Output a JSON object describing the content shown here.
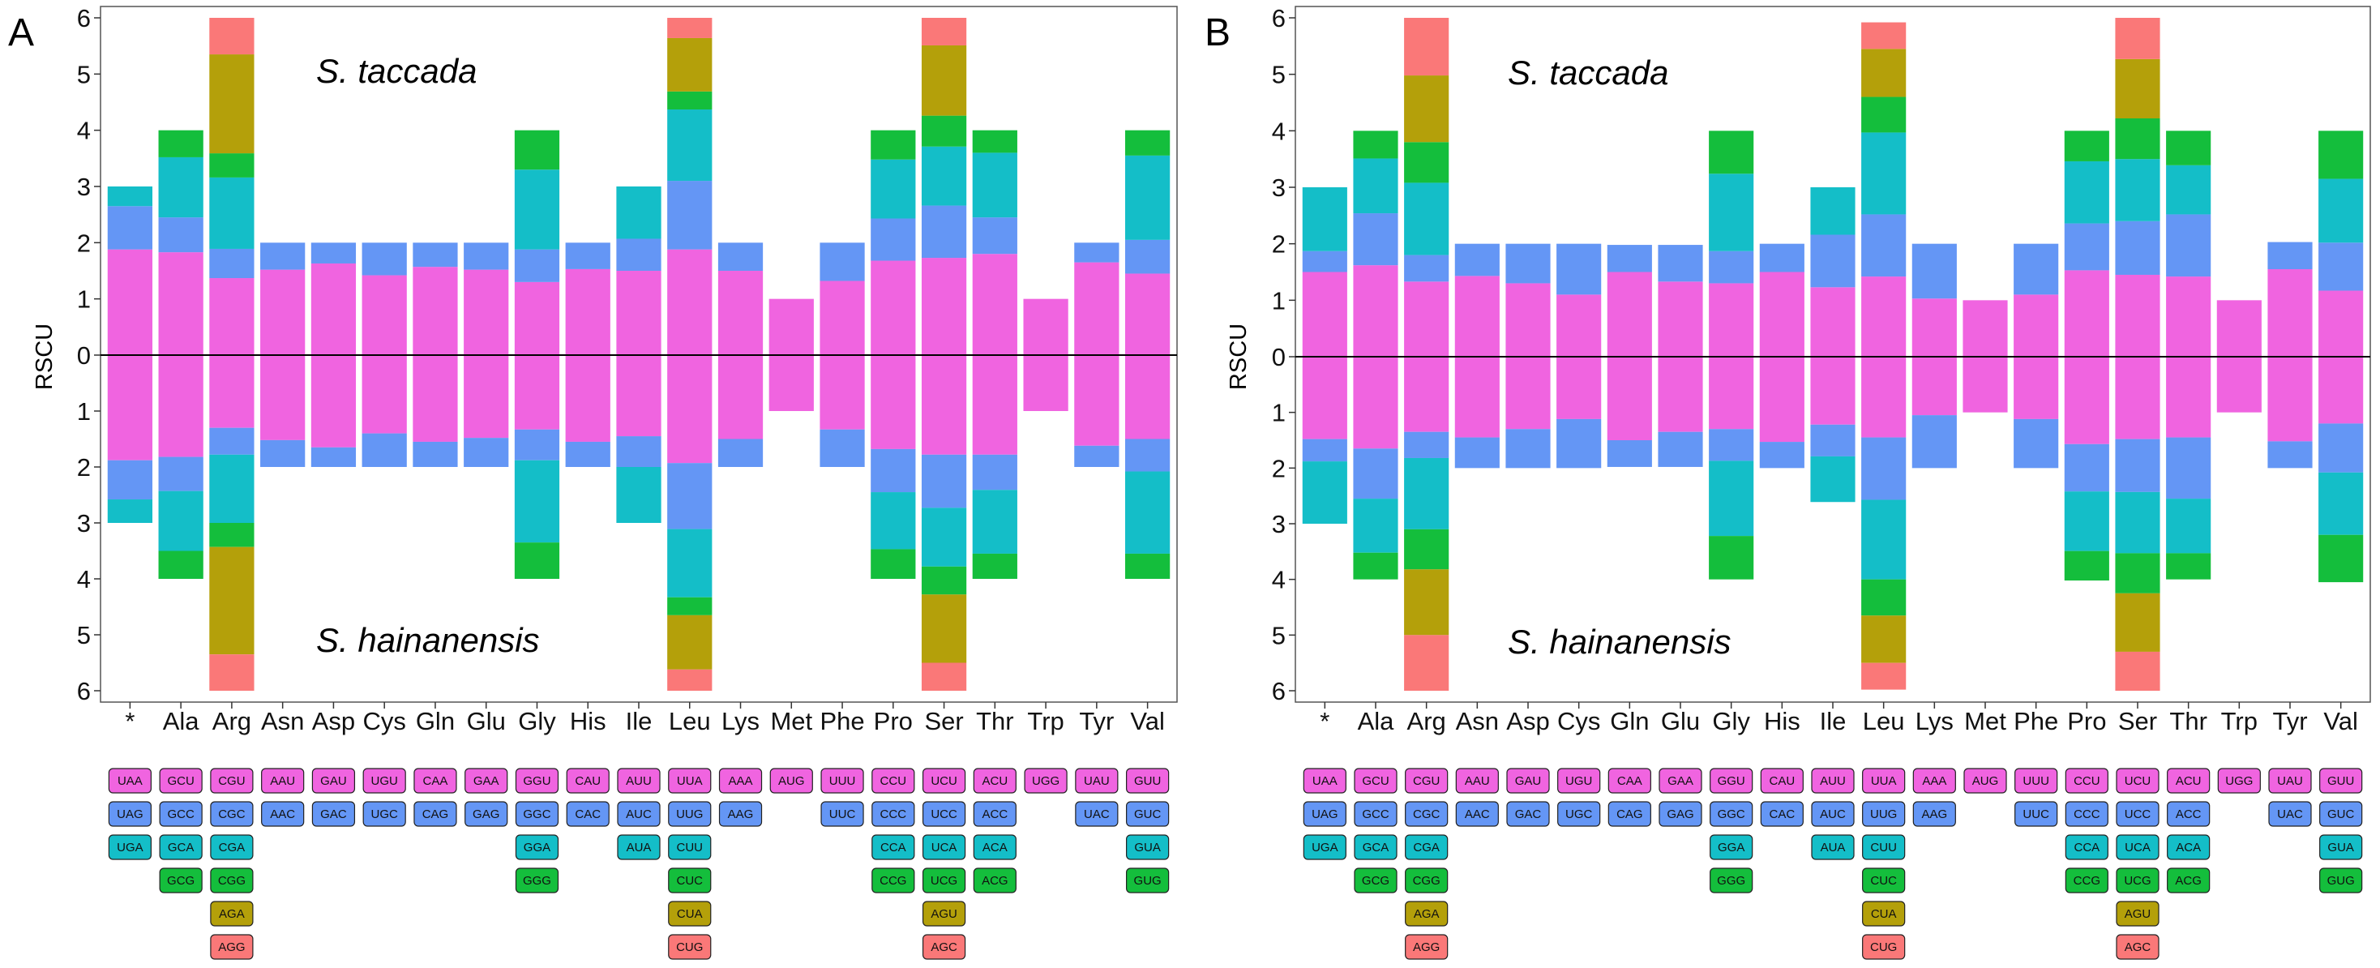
{
  "colors": {
    "pink": "#F064E0",
    "blue": "#6496F5",
    "cyan": "#14BEC8",
    "green": "#14BE3C",
    "olive": "#B4A00A",
    "salmon": "#FA7878"
  },
  "color_order": [
    "pink",
    "blue",
    "cyan",
    "green",
    "olive",
    "salmon"
  ],
  "chart_data": [
    {
      "type": "bar",
      "panel_label": "A",
      "ylabel": "RSCU",
      "yticks": [
        "6",
        "5",
        "4",
        "3",
        "2",
        "1",
        "0",
        "1",
        "2",
        "3",
        "4",
        "5",
        "6"
      ],
      "ylim_top": 6,
      "ylim_bottom": 6,
      "top_species": "S. taccada",
      "bottom_species": "S. hainanensis",
      "categories": [
        "*",
        "Ala",
        "Arg",
        "Asn",
        "Asp",
        "Cys",
        "Gln",
        "Glu",
        "Gly",
        "His",
        "Ile",
        "Leu",
        "Lys",
        "Met",
        "Phe",
        "Pro",
        "Ser",
        "Thr",
        "Trp",
        "Tyr",
        "Val"
      ],
      "top_stacks": [
        [
          1.88,
          0.77,
          0.35
        ],
        [
          1.83,
          0.62,
          1.07,
          0.48
        ],
        [
          1.37,
          0.52,
          1.27,
          0.43,
          1.76,
          0.65
        ],
        [
          1.52,
          0.48
        ],
        [
          1.63,
          0.37
        ],
        [
          1.42,
          0.58
        ],
        [
          1.57,
          0.43
        ],
        [
          1.52,
          0.48
        ],
        [
          1.3,
          0.58,
          1.42,
          0.7
        ],
        [
          1.53,
          0.47
        ],
        [
          1.5,
          0.57,
          0.93
        ],
        [
          1.88,
          1.22,
          1.27,
          0.32,
          0.95,
          0.36
        ],
        [
          1.5,
          0.5
        ],
        [
          1.0
        ],
        [
          1.32,
          0.68
        ],
        [
          1.68,
          0.75,
          1.05,
          0.52
        ],
        [
          1.73,
          0.93,
          1.05,
          0.55,
          1.25,
          0.49
        ],
        [
          1.8,
          0.65,
          1.15,
          0.4
        ],
        [
          1.0
        ],
        [
          1.65,
          0.35
        ],
        [
          1.45,
          0.6,
          1.5,
          0.45
        ]
      ],
      "bottom_stacks": [
        [
          1.88,
          0.7,
          0.42
        ],
        [
          1.82,
          0.61,
          1.07,
          0.5
        ],
        [
          1.3,
          0.48,
          1.22,
          0.43,
          1.92,
          0.65
        ],
        [
          1.52,
          0.48
        ],
        [
          1.65,
          0.35
        ],
        [
          1.4,
          0.6
        ],
        [
          1.55,
          0.45
        ],
        [
          1.48,
          0.52
        ],
        [
          1.33,
          0.55,
          1.47,
          0.65
        ],
        [
          1.55,
          0.45
        ],
        [
          1.45,
          0.55,
          1.0
        ],
        [
          1.93,
          1.18,
          1.22,
          0.32,
          0.97,
          0.38
        ],
        [
          1.5,
          0.5
        ],
        [
          1.0
        ],
        [
          1.33,
          0.67
        ],
        [
          1.68,
          0.77,
          1.02,
          0.53
        ],
        [
          1.78,
          0.95,
          1.05,
          0.5,
          1.22,
          0.5
        ],
        [
          1.78,
          0.63,
          1.14,
          0.45
        ],
        [
          1.0
        ],
        [
          1.62,
          0.38
        ],
        [
          1.5,
          0.58,
          1.47,
          0.45
        ]
      ]
    },
    {
      "type": "bar",
      "panel_label": "B",
      "ylabel": "RSCU",
      "yticks": [
        "6",
        "5",
        "4",
        "3",
        "2",
        "1",
        "0",
        "1",
        "2",
        "3",
        "4",
        "5",
        "6"
      ],
      "ylim_top": 6,
      "ylim_bottom": 6,
      "top_species": "S. taccada",
      "bottom_species": "S. hainanensis",
      "categories": [
        "*",
        "Ala",
        "Arg",
        "Asn",
        "Asp",
        "Cys",
        "Gln",
        "Glu",
        "Gly",
        "His",
        "Ile",
        "Leu",
        "Lys",
        "Met",
        "Phe",
        "Pro",
        "Ser",
        "Thr",
        "Trp",
        "Tyr",
        "Val"
      ],
      "top_stacks": [
        [
          1.5,
          0.37,
          1.13
        ],
        [
          1.62,
          0.92,
          0.97,
          0.49
        ],
        [
          1.33,
          0.47,
          1.28,
          0.72,
          1.18,
          1.02
        ],
        [
          1.43,
          0.57
        ],
        [
          1.3,
          0.7
        ],
        [
          1.1,
          0.9
        ],
        [
          1.5,
          0.48
        ],
        [
          1.33,
          0.65
        ],
        [
          1.3,
          0.57,
          1.37,
          0.76
        ],
        [
          1.5,
          0.5
        ],
        [
          1.23,
          0.93,
          0.84
        ],
        [
          1.42,
          1.1,
          1.45,
          0.63,
          0.85,
          0.47
        ],
        [
          1.03,
          0.97
        ],
        [
          1.0
        ],
        [
          1.1,
          0.9
        ],
        [
          1.53,
          0.83,
          1.1,
          0.54
        ],
        [
          1.45,
          0.95,
          1.1,
          0.72,
          1.05,
          0.73
        ],
        [
          1.42,
          1.1,
          0.87,
          0.61
        ],
        [
          1.0
        ],
        [
          1.55,
          0.48
        ],
        [
          1.17,
          0.85,
          1.13,
          0.85
        ]
      ],
      "bottom_stacks": [
        [
          1.48,
          0.4,
          1.12
        ],
        [
          1.65,
          0.9,
          0.97,
          0.48
        ],
        [
          1.35,
          0.47,
          1.28,
          0.72,
          1.18,
          1.0
        ],
        [
          1.45,
          0.55
        ],
        [
          1.3,
          0.7
        ],
        [
          1.12,
          0.88
        ],
        [
          1.5,
          0.48
        ],
        [
          1.35,
          0.63
        ],
        [
          1.3,
          0.57,
          1.35,
          0.78
        ],
        [
          1.53,
          0.47
        ],
        [
          1.22,
          0.57,
          0.82
        ],
        [
          1.45,
          1.12,
          1.43,
          0.65,
          0.85,
          0.48
        ],
        [
          1.05,
          0.95
        ],
        [
          1.0
        ],
        [
          1.12,
          0.88
        ],
        [
          1.57,
          0.85,
          1.07,
          0.53
        ],
        [
          1.48,
          0.95,
          1.1,
          0.72,
          1.05,
          0.7
        ],
        [
          1.45,
          1.1,
          0.98,
          0.47
        ],
        [
          1.0
        ],
        [
          1.52,
          0.48
        ],
        [
          1.2,
          0.88,
          1.12,
          0.85
        ]
      ]
    }
  ],
  "codon_tables": [
    [
      [
        "UAA",
        "UAG",
        "UGA"
      ],
      [
        "GCU",
        "GCC",
        "GCA",
        "GCG"
      ],
      [
        "CGU",
        "CGC",
        "CGA",
        "CGG",
        "AGA",
        "AGG"
      ],
      [
        "AAU",
        "AAC"
      ],
      [
        "GAU",
        "GAC"
      ],
      [
        "UGU",
        "UGC"
      ],
      [
        "CAA",
        "CAG"
      ],
      [
        "GAA",
        "GAG"
      ],
      [
        "GGU",
        "GGC",
        "GGA",
        "GGG"
      ],
      [
        "CAU",
        "CAC"
      ],
      [
        "AUU",
        "AUC",
        "AUA"
      ],
      [
        "UUA",
        "UUG",
        "CUU",
        "CUC",
        "CUA",
        "CUG"
      ],
      [
        "AAA",
        "AAG"
      ],
      [
        "AUG"
      ],
      [
        "UUU",
        "UUC"
      ],
      [
        "CCU",
        "CCC",
        "CCA",
        "CCG"
      ],
      [
        "UCU",
        "UCC",
        "UCA",
        "UCG",
        "AGU",
        "AGC"
      ],
      [
        "ACU",
        "ACC",
        "ACA",
        "ACG"
      ],
      [
        "UGG"
      ],
      [
        "UAU",
        "UAC"
      ],
      [
        "GUU",
        "GUC",
        "GUA",
        "GUG"
      ]
    ],
    [
      [
        "UAA",
        "UAG",
        "UGA"
      ],
      [
        "GCU",
        "GCC",
        "GCA",
        "GCG"
      ],
      [
        "CGU",
        "CGC",
        "CGA",
        "CGG",
        "AGA",
        "AGG"
      ],
      [
        "AAU",
        "AAC"
      ],
      [
        "GAU",
        "GAC"
      ],
      [
        "UGU",
        "UGC"
      ],
      [
        "CAA",
        "CAG"
      ],
      [
        "GAA",
        "GAG"
      ],
      [
        "GGU",
        "GGC",
        "GGA",
        "GGG"
      ],
      [
        "CAU",
        "CAC"
      ],
      [
        "AUU",
        "AUC",
        "AUA"
      ],
      [
        "UUA",
        "UUG",
        "CUU",
        "CUC",
        "CUA",
        "CUG"
      ],
      [
        "AAA",
        "AAG"
      ],
      [
        "AUG"
      ],
      [
        "UUU",
        "UUC"
      ],
      [
        "CCU",
        "CCC",
        "CCA",
        "CCG"
      ],
      [
        "UCU",
        "UCC",
        "UCA",
        "UCG",
        "AGU",
        "AGC"
      ],
      [
        "ACU",
        "ACC",
        "ACA",
        "ACG"
      ],
      [
        "UGG"
      ],
      [
        "UAU",
        "UAC"
      ],
      [
        "GUU",
        "GUC",
        "GUA",
        "GUG"
      ]
    ]
  ]
}
